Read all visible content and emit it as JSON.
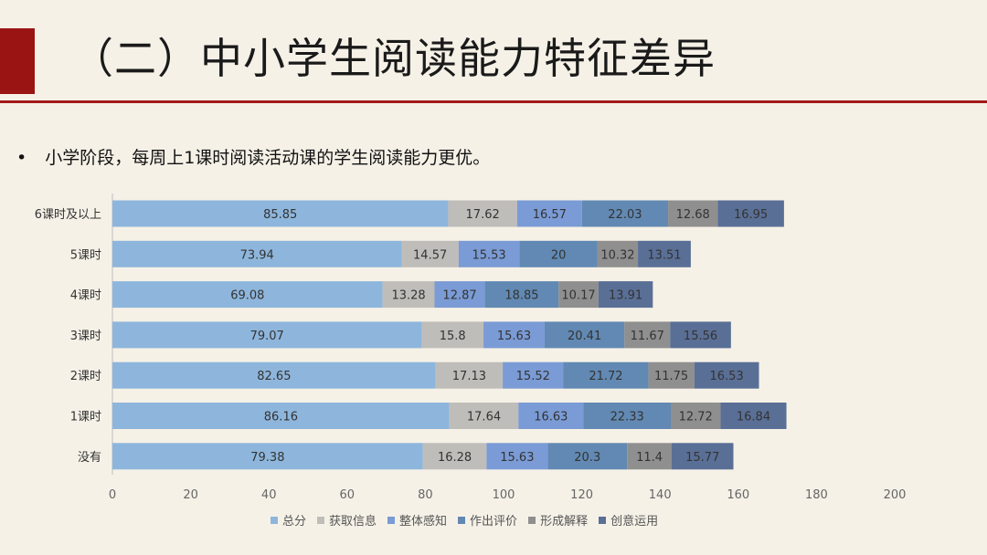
{
  "slide": {
    "title": "（二）中小学生阅读能力特征差异",
    "bullet_symbol": "•",
    "bullet_text": "小学阶段，每周上1课时阅读活动课的学生阅读能力更优。"
  },
  "colors": {
    "accent": "#9b1414",
    "background": "#f6f1e7"
  },
  "chart_data": {
    "type": "bar",
    "orientation": "horizontal",
    "stacked": true,
    "categories": [
      "6课时及以上",
      "5课时",
      "4课时",
      "3课时",
      "2课时",
      "1课时",
      "没有"
    ],
    "series": [
      {
        "name": "总分",
        "color": "#8eb6dc",
        "values": [
          85.85,
          73.94,
          69.08,
          79.07,
          82.65,
          86.16,
          79.38
        ]
      },
      {
        "name": "获取信息",
        "color": "#bfbdb9",
        "values": [
          17.62,
          14.57,
          13.28,
          15.8,
          17.13,
          17.64,
          16.28
        ]
      },
      {
        "name": "整体感知",
        "color": "#7a9bd5",
        "values": [
          16.57,
          15.53,
          12.87,
          15.63,
          15.52,
          16.63,
          15.63
        ]
      },
      {
        "name": "作出评价",
        "color": "#6189b3",
        "values": [
          22.03,
          20,
          18.85,
          20.41,
          21.72,
          22.33,
          20.3
        ]
      },
      {
        "name": "形成解释",
        "color": "#8f8f8f",
        "values": [
          12.68,
          10.32,
          10.17,
          11.67,
          11.75,
          12.72,
          11.4
        ]
      },
      {
        "name": "创意运用",
        "color": "#5a6f96",
        "values": [
          16.95,
          13.51,
          13.91,
          15.56,
          16.53,
          16.84,
          15.77
        ]
      }
    ],
    "xlim": [
      0,
      200
    ],
    "xticks": [
      0,
      20,
      40,
      60,
      80,
      100,
      120,
      140,
      160,
      180,
      200
    ],
    "legend_position": "bottom"
  }
}
